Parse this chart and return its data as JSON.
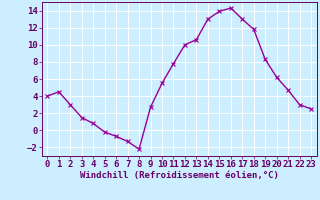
{
  "x": [
    0,
    1,
    2,
    3,
    4,
    5,
    6,
    7,
    8,
    9,
    10,
    11,
    12,
    13,
    14,
    15,
    16,
    17,
    18,
    19,
    20,
    21,
    22,
    23
  ],
  "y": [
    4.0,
    4.5,
    3.0,
    1.5,
    0.8,
    -0.2,
    -0.7,
    -1.3,
    -2.2,
    2.7,
    5.5,
    7.8,
    10.0,
    10.6,
    13.0,
    13.9,
    14.3,
    13.0,
    11.8,
    8.3,
    6.2,
    4.7,
    3.0,
    2.5
  ],
  "line_color": "#990099",
  "marker": "x",
  "marker_size": 3,
  "line_width": 1.0,
  "xlabel": "Windchill (Refroidissement éolien,°C)",
  "xlim": [
    -0.5,
    23.5
  ],
  "ylim": [
    -3,
    15
  ],
  "yticks": [
    -2,
    0,
    2,
    4,
    6,
    8,
    10,
    12,
    14
  ],
  "xticks": [
    0,
    1,
    2,
    3,
    4,
    5,
    6,
    7,
    8,
    9,
    10,
    11,
    12,
    13,
    14,
    15,
    16,
    17,
    18,
    19,
    20,
    21,
    22,
    23
  ],
  "bg_color": "#cceeff",
  "grid_color": "#ffffff",
  "tick_color": "#660066",
  "label_color": "#660066",
  "xlabel_fontsize": 6.5,
  "tick_fontsize": 6.5,
  "fig_width": 3.2,
  "fig_height": 2.0,
  "dpi": 100
}
